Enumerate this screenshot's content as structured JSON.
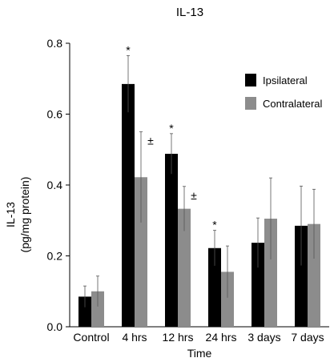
{
  "chart_data": {
    "type": "bar",
    "title": "IL-13",
    "xlabel": "Time",
    "ylabel": "IL-13",
    "ylabel_unit": "(pg/mg protein)",
    "ylim": [
      0,
      0.8
    ],
    "yticks": [
      "0.0",
      "0.2",
      "0.4",
      "0.6",
      "0.8"
    ],
    "yticks_values": [
      0,
      0.2,
      0.4,
      0.6,
      0.8
    ],
    "categories": [
      "Control",
      "4 hrs",
      "12 hrs",
      "24 hrs",
      "3 days",
      "7 days"
    ],
    "legend_position": "top-right",
    "grid": false,
    "series": [
      {
        "name": "Ipsilateral",
        "color": "#000000",
        "values": [
          0.085,
          0.685,
          0.488,
          0.222,
          0.237,
          0.285
        ],
        "errors": [
          0.03,
          0.08,
          0.057,
          0.05,
          0.07,
          0.112
        ],
        "annotations": [
          "",
          "*",
          "*",
          "*",
          "",
          ""
        ]
      },
      {
        "name": "Contralateral",
        "color": "#8c8c8c",
        "values": [
          0.1,
          0.422,
          0.333,
          0.155,
          0.305,
          0.29
        ],
        "errors": [
          0.043,
          0.128,
          0.063,
          0.073,
          0.115,
          0.098
        ],
        "annotations": [
          "",
          "±",
          "±",
          "",
          "",
          ""
        ]
      }
    ]
  }
}
